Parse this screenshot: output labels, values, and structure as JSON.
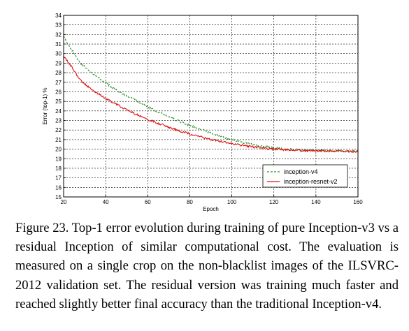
{
  "chart_data": {
    "type": "line",
    "title": "",
    "xlabel": "Epoch",
    "ylabel": "Error (top-1) %",
    "xlim": [
      20,
      160
    ],
    "ylim": [
      15,
      34
    ],
    "x_ticks": [
      20,
      40,
      60,
      80,
      100,
      120,
      140,
      160
    ],
    "y_ticks": [
      15,
      16,
      17,
      18,
      19,
      20,
      21,
      22,
      23,
      24,
      25,
      26,
      27,
      28,
      29,
      30,
      31,
      32,
      33,
      34
    ],
    "grid": true,
    "legend_position": "bottom-right",
    "series": [
      {
        "name": "inception-v4",
        "color": "#2e8b2e",
        "style": "dashed",
        "x": [
          20,
          22,
          25,
          28,
          30,
          35,
          40,
          45,
          50,
          55,
          60,
          65,
          70,
          75,
          80,
          85,
          90,
          95,
          100,
          105,
          110,
          115,
          120,
          125,
          130,
          135,
          140,
          145,
          150,
          155,
          160
        ],
        "y": [
          31.8,
          31.0,
          30.0,
          29.0,
          28.6,
          27.7,
          26.9,
          26.2,
          25.6,
          25.0,
          24.4,
          23.9,
          23.4,
          22.9,
          22.5,
          22.1,
          21.7,
          21.3,
          21.0,
          20.7,
          20.5,
          20.3,
          20.1,
          20.0,
          19.95,
          19.9,
          19.85,
          19.85,
          19.8,
          19.8,
          19.8
        ]
      },
      {
        "name": "inception-resnet-v2",
        "color": "#e01010",
        "style": "solid",
        "x": [
          20,
          22,
          25,
          28,
          30,
          35,
          40,
          45,
          50,
          55,
          60,
          65,
          70,
          75,
          80,
          85,
          90,
          95,
          100,
          105,
          110,
          115,
          120,
          125,
          130,
          135,
          140,
          145,
          150,
          155,
          160
        ],
        "y": [
          29.7,
          29.2,
          28.2,
          27.2,
          26.8,
          26.0,
          25.3,
          24.7,
          24.1,
          23.6,
          23.1,
          22.7,
          22.3,
          21.9,
          21.6,
          21.3,
          21.0,
          20.8,
          20.6,
          20.4,
          20.25,
          20.1,
          20.0,
          19.95,
          19.9,
          19.85,
          19.85,
          19.8,
          19.8,
          19.75,
          19.75
        ]
      }
    ]
  },
  "caption": "Figure 23. Top-1 error evolution during training of pure Inception-v3 vs a residual Inception of similar computational cost. The evaluation is measured on a single crop on the non-blacklist images of the ILSVRC-2012 validation set. The residual version was training much faster and reached slightly better final accuracy than the traditional Inception-v4."
}
